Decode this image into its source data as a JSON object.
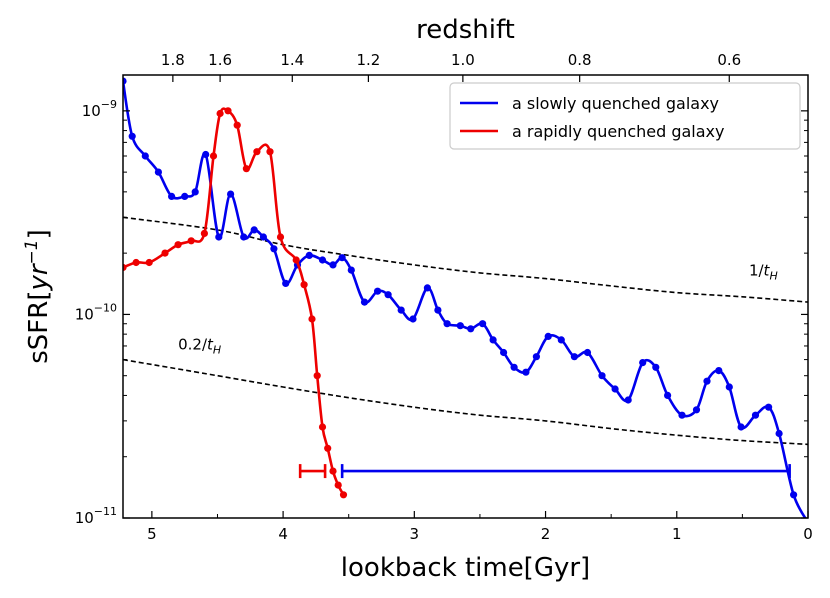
{
  "chart_data": {
    "type": "line",
    "xlabel": "lookback time[Gyr]",
    "ylabel": "sSFR[yr⁻¹]",
    "top_axis_label": "redshift",
    "x_reversed": true,
    "xlim": [
      5.22,
      0.0
    ],
    "ylim": [
      1e-11,
      1.5e-09
    ],
    "y_scale": "log",
    "grid": false,
    "legend_placement": "top-right",
    "x_ticks": [
      5,
      4,
      3,
      2,
      1,
      0
    ],
    "x_tick_labels": [
      "5",
      "4",
      "3",
      "2",
      "1",
      "0"
    ],
    "y_ticks": [
      1e-11,
      1e-10,
      1e-09
    ],
    "y_tick_labels": [
      {
        "base": "10",
        "exp": "−11"
      },
      {
        "base": "10",
        "exp": "−10"
      },
      {
        "base": "10",
        "exp": "−9"
      }
    ],
    "top_ticks": [
      {
        "label": "1.8",
        "lookback": 4.84
      },
      {
        "label": "1.6",
        "lookback": 4.48
      },
      {
        "label": "1.4",
        "lookback": 3.93
      },
      {
        "label": "1.2",
        "lookback": 3.35
      },
      {
        "label": "1.0",
        "lookback": 2.63
      },
      {
        "label": "0.8",
        "lookback": 1.74
      },
      {
        "label": "0.6",
        "lookback": 0.6
      }
    ],
    "series": [
      {
        "name": "a slowly quenched galaxy",
        "color": "#0000ee",
        "x": [
          5.22,
          5.15,
          5.05,
          4.95,
          4.85,
          4.75,
          4.67,
          4.59,
          4.49,
          4.4,
          4.3,
          4.22,
          4.15,
          4.07,
          3.98,
          3.89,
          3.8,
          3.7,
          3.62,
          3.55,
          3.48,
          3.38,
          3.28,
          3.2,
          3.1,
          3.01,
          2.9,
          2.82,
          2.75,
          2.65,
          2.57,
          2.48,
          2.4,
          2.32,
          2.24,
          2.15,
          2.07,
          1.98,
          1.88,
          1.78,
          1.68,
          1.57,
          1.47,
          1.37,
          1.26,
          1.16,
          1.07,
          0.96,
          0.85,
          0.77,
          0.68,
          0.6,
          0.51,
          0.4,
          0.3,
          0.22,
          0.11,
          0.0
        ],
        "y": [
          1.4e-09,
          7.5e-10,
          6e-10,
          5e-10,
          3.8e-10,
          3.8e-10,
          4e-10,
          6.1e-10,
          2.4e-10,
          3.9e-10,
          2.4e-10,
          2.6e-10,
          2.4e-10,
          2.1e-10,
          1.42e-10,
          1.75e-10,
          1.95e-10,
          1.85e-10,
          1.75e-10,
          1.9e-10,
          1.65e-10,
          1.15e-10,
          1.3e-10,
          1.25e-10,
          1.05e-10,
          9.5e-11,
          1.35e-10,
          1.05e-10,
          9e-11,
          8.8e-11,
          8.5e-11,
          9e-11,
          7.5e-11,
          6.5e-11,
          5.5e-11,
          5.2e-11,
          6.2e-11,
          7.8e-11,
          7.5e-11,
          6.2e-11,
          6.5e-11,
          5e-11,
          4.3e-11,
          3.8e-11,
          5.8e-11,
          5.5e-11,
          4e-11,
          3.2e-11,
          3.4e-11,
          4.7e-11,
          5.3e-11,
          4.4e-11,
          2.8e-11,
          3.2e-11,
          3.5e-11,
          2.6e-11,
          1.3e-11,
          9.5e-12
        ]
      },
      {
        "name": "a rapidly quenched galaxy",
        "color": "#ee0000",
        "x": [
          5.22,
          5.12,
          5.02,
          4.9,
          4.8,
          4.7,
          4.6,
          4.53,
          4.48,
          4.42,
          4.35,
          4.28,
          4.2,
          4.1,
          4.02,
          3.9,
          3.84,
          3.78,
          3.74,
          3.7,
          3.66,
          3.62,
          3.58,
          3.54
        ],
        "y": [
          1.7e-10,
          1.8e-10,
          1.8e-10,
          2e-10,
          2.2e-10,
          2.3e-10,
          2.5e-10,
          6e-10,
          9.7e-10,
          1e-09,
          8.5e-10,
          5.2e-10,
          6.3e-10,
          6.3e-10,
          2.4e-10,
          1.85e-10,
          1.4e-10,
          9.5e-11,
          5e-11,
          2.8e-11,
          2.2e-11,
          1.7e-11,
          1.45e-11,
          1.3e-11
        ]
      }
    ],
    "reference_lines": [
      {
        "label": "1/t",
        "subscript": "H",
        "x": [
          5.22,
          4.5,
          4.0,
          3.5,
          3.0,
          2.5,
          2.0,
          1.5,
          1.0,
          0.5,
          0.0
        ],
        "y": [
          3e-10,
          2.6e-10,
          2.2e-10,
          1.95e-10,
          1.75e-10,
          1.6e-10,
          1.5e-10,
          1.38e-10,
          1.28e-10,
          1.22e-10,
          1.15e-10
        ]
      },
      {
        "label": "0.2/t",
        "subscript": "H",
        "x": [
          5.22,
          4.5,
          4.0,
          3.5,
          3.0,
          2.5,
          2.0,
          1.5,
          1.0,
          0.5,
          0.0
        ],
        "y": [
          6e-11,
          5e-11,
          4.4e-11,
          3.9e-11,
          3.5e-11,
          3.2e-11,
          3e-11,
          2.75e-11,
          2.55e-11,
          2.4e-11,
          2.3e-11
        ]
      }
    ],
    "intervals": [
      {
        "color": "#ee0000",
        "x_start": 3.87,
        "x_end": 3.68,
        "y": 1.7e-11
      },
      {
        "color": "#0000ee",
        "x_start": 3.55,
        "x_end": 0.14,
        "y": 1.7e-11
      }
    ]
  }
}
